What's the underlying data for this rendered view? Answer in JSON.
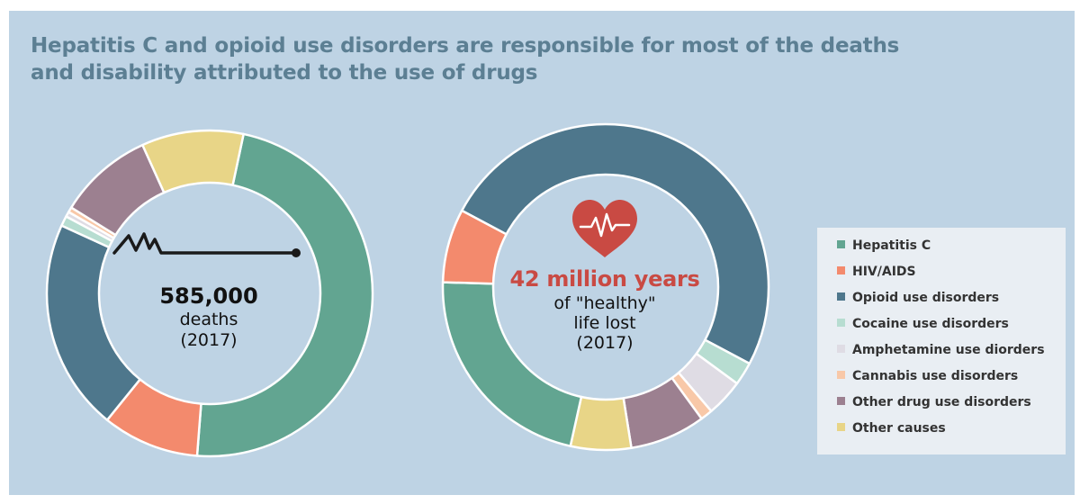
{
  "title": {
    "line1": "Hepatitis C and opioid use disorders are responsible for most of the deaths",
    "line2": "and disability attributed to the use of drugs"
  },
  "legend": {
    "items": [
      {
        "label": "Hepatitis C",
        "color": "#62a591"
      },
      {
        "label": "HIV/AIDS",
        "color": "#f38a6d"
      },
      {
        "label": "Opioid use disorders",
        "color": "#4e778c"
      },
      {
        "label": "Cocaine use disorders",
        "color": "#b7ddd1"
      },
      {
        "label": "Amphetamine use diorders",
        "color": "#dfdce4"
      },
      {
        "label": "Cannabis use disorders",
        "color": "#f8c8a8"
      },
      {
        "label": "Other drug use disorders",
        "color": "#9c8090"
      },
      {
        "label": "Other causes",
        "color": "#e8d587"
      }
    ]
  },
  "chart_data": [
    {
      "type": "pie",
      "variant": "donut",
      "center_text": {
        "value": "585,000",
        "line1": "deaths",
        "line2": "(2017)"
      },
      "center_icon": "heartbeat-line-icon",
      "categories": [
        "Hepatitis C",
        "HIV/AIDS",
        "Opioid use disorders",
        "Cocaine use disorders",
        "Amphetamine use diorders",
        "Cannabis use disorders",
        "Other drug use disorders",
        "Other causes"
      ],
      "values": [
        47.9,
        9.6,
        21.0,
        1.0,
        0.5,
        0.5,
        9.4,
        10.1
      ]
    },
    {
      "type": "pie",
      "variant": "donut",
      "center_text": {
        "value": "42 million years",
        "line1": "of \"healthy\"",
        "line2": "life lost",
        "line3": "(2017)"
      },
      "center_icon": "heart-pulse-icon",
      "categories": [
        "Opioid use disorders",
        "Cocaine use disorders",
        "Amphetamine use diorders",
        "Cannabis use disorders",
        "Other drug use disorders",
        "Other causes",
        "Hepatitis C",
        "HIV/AIDS"
      ],
      "values": [
        50.0,
        2.3,
        3.7,
        1.2,
        7.5,
        6.0,
        22.0,
        7.3
      ]
    }
  ]
}
